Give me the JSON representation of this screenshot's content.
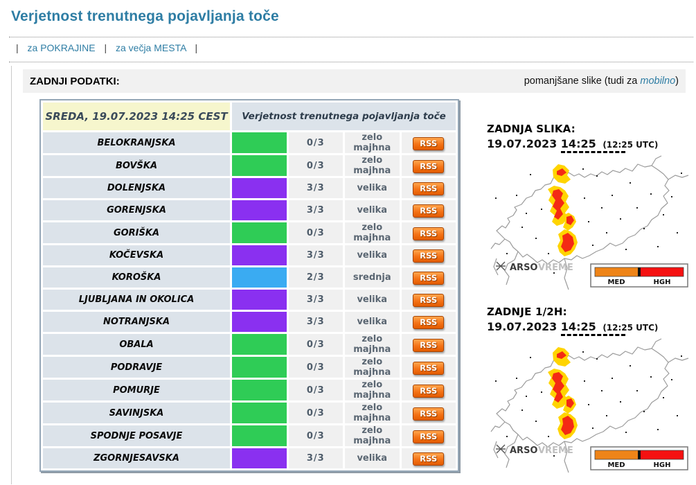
{
  "page": {
    "title": "Verjetnost trenutnega pojavljanja toče",
    "nav": {
      "separator": "|",
      "link_regions": "za POKRAJINE",
      "link_cities": "za večja MESTA"
    },
    "strip": {
      "heading": "ZADNJI PODATKI:",
      "note_prefix": "pomanjšane slike (tudi za ",
      "note_link": "mobilno",
      "note_suffix": ")"
    }
  },
  "table": {
    "header_datetime": "SREDA, 19.07.2023 14:25 CEST",
    "header_title": "Verjetnost trenutnega pojavljanja toče",
    "rss_label": "RSS",
    "level_colors": {
      "green": "#2fcc56",
      "blue": "#3aabf2",
      "purple": "#8a30f0"
    },
    "rows": [
      {
        "region": "BELOKRANJSKA",
        "level": "green",
        "score": "0/3",
        "label": "zelo majhna"
      },
      {
        "region": "BOVŠKA",
        "level": "green",
        "score": "0/3",
        "label": "zelo majhna"
      },
      {
        "region": "DOLENJSKA",
        "level": "purple",
        "score": "3/3",
        "label": "velika"
      },
      {
        "region": "GORENJSKA",
        "level": "purple",
        "score": "3/3",
        "label": "velika"
      },
      {
        "region": "GORIŠKA",
        "level": "green",
        "score": "0/3",
        "label": "zelo majhna"
      },
      {
        "region": "KOČEVSKA",
        "level": "purple",
        "score": "3/3",
        "label": "velika"
      },
      {
        "region": "KOROŠKA",
        "level": "blue",
        "score": "2/3",
        "label": "srednja"
      },
      {
        "region": "LJUBLJANA IN OKOLICA",
        "level": "purple",
        "score": "3/3",
        "label": "velika"
      },
      {
        "region": "NOTRANJSKA",
        "level": "purple",
        "score": "3/3",
        "label": "velika"
      },
      {
        "region": "OBALA",
        "level": "green",
        "score": "0/3",
        "label": "zelo majhna"
      },
      {
        "region": "PODRAVJE",
        "level": "green",
        "score": "0/3",
        "label": "zelo majhna"
      },
      {
        "region": "POMURJE",
        "level": "green",
        "score": "0/3",
        "label": "zelo majhna"
      },
      {
        "region": "SAVINJSKA",
        "level": "green",
        "score": "0/3",
        "label": "zelo majhna"
      },
      {
        "region": "SPODNJE POSAVJE",
        "level": "green",
        "score": "0/3",
        "label": "zelo majhna"
      },
      {
        "region": "ZGORNJESAVSKA",
        "level": "purple",
        "score": "3/3",
        "label": "velika"
      }
    ]
  },
  "maps": [
    {
      "heading": "ZADNJA SLIKA:",
      "date": "19.07.2023",
      "time": "14:25",
      "utc": "(12:25 UTC)"
    },
    {
      "heading": "ZADNJE 1/2H:",
      "date": "19.07.2023",
      "time": "14:25",
      "utc": "(12:25 UTC)"
    }
  ],
  "map_common": {
    "logo_arso": "ARSO",
    "logo_vreme": "VREME",
    "legend_med": "MED",
    "legend_hgh": "HGH",
    "blob_yellow": "#ffd400",
    "blob_red": "#f42a14",
    "legend_orange": "#ee8418",
    "legend_red": "#f51111"
  }
}
